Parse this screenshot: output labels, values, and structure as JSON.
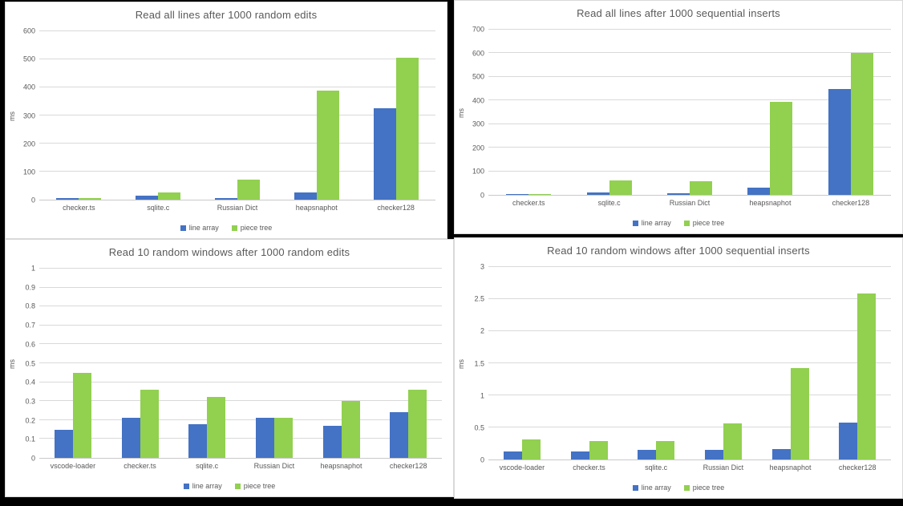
{
  "page": {
    "background": "#000000",
    "panel_background": "#ffffff",
    "panel_border": "#d9d9d9",
    "grid_color": "#d9d9d9",
    "axis_color": "#c9c9c9",
    "text_color": "#595959"
  },
  "legend": {
    "items": [
      {
        "label": "line array",
        "color": "#4472C4"
      },
      {
        "label": "piece tree",
        "color": "#92D050"
      }
    ]
  },
  "chart_data": [
    {
      "type": "bar",
      "title": "Read all lines after 1000 random edits",
      "ylabel": "ms",
      "xlabel": "",
      "ylim": [
        0,
        600
      ],
      "yticks": [
        "0",
        "100",
        "200",
        "300",
        "400",
        "500",
        "600"
      ],
      "grid": true,
      "legend_position": "bottom",
      "categories": [
        "checker.ts",
        "sqlite.c",
        "Russian Dict",
        "heapsnaphot",
        "checker128"
      ],
      "series": [
        {
          "name": "line array",
          "color": "#4472C4",
          "values": [
            5,
            13,
            6,
            25,
            325
          ]
        },
        {
          "name": "piece tree",
          "color": "#92D050",
          "values": [
            7,
            27,
            72,
            388,
            505
          ]
        }
      ]
    },
    {
      "type": "bar",
      "title": "Read all lines after 1000 sequential inserts",
      "ylabel": "ms",
      "xlabel": "",
      "ylim": [
        0,
        700
      ],
      "yticks": [
        "0",
        "100",
        "200",
        "300",
        "400",
        "500",
        "600",
        "700"
      ],
      "grid": true,
      "legend_position": "bottom",
      "categories": [
        "checker.ts",
        "sqlite.c",
        "Russian Dict",
        "heapsnaphot",
        "checker128"
      ],
      "series": [
        {
          "name": "line array",
          "color": "#4472C4",
          "values": [
            5,
            11,
            8,
            31,
            450
          ]
        },
        {
          "name": "piece tree",
          "color": "#92D050",
          "values": [
            4,
            60,
            57,
            395,
            600
          ]
        }
      ]
    },
    {
      "type": "bar",
      "title": "Read 10 random windows after 1000 random edits",
      "ylabel": "ms",
      "xlabel": "",
      "ylim": [
        0,
        1
      ],
      "yticks": [
        "0",
        "0.1",
        "0.2",
        "0.3",
        "0.4",
        "0.5",
        "0.6",
        "0.7",
        "0.8",
        "0.9",
        "1"
      ],
      "grid": true,
      "legend_position": "bottom",
      "categories": [
        "vscode-loader",
        "checker.ts",
        "sqlite.c",
        "Russian Dict",
        "heapsnaphot",
        "checker128"
      ],
      "series": [
        {
          "name": "line array",
          "color": "#4472C4",
          "values": [
            0.15,
            0.21,
            0.18,
            0.21,
            0.17,
            0.24
          ]
        },
        {
          "name": "piece tree",
          "color": "#92D050",
          "values": [
            0.45,
            0.36,
            0.32,
            0.21,
            0.3,
            0.36
          ]
        }
      ]
    },
    {
      "type": "bar",
      "title": "Read 10 random windows after 1000 sequential inserts",
      "ylabel": "ms",
      "xlabel": "",
      "ylim": [
        0,
        3
      ],
      "yticks": [
        "0",
        "0.5",
        "1",
        "1.5",
        "2",
        "2.5",
        "3"
      ],
      "grid": true,
      "legend_position": "bottom",
      "categories": [
        "vscode-loader",
        "checker.ts",
        "sqlite.c",
        "Russian Dict",
        "heapsnaphot",
        "checker128"
      ],
      "series": [
        {
          "name": "line array",
          "color": "#4472C4",
          "values": [
            0.13,
            0.12,
            0.15,
            0.15,
            0.16,
            0.58
          ]
        },
        {
          "name": "piece tree",
          "color": "#92D050",
          "values": [
            0.31,
            0.29,
            0.29,
            0.56,
            1.42,
            2.59
          ]
        }
      ]
    }
  ]
}
